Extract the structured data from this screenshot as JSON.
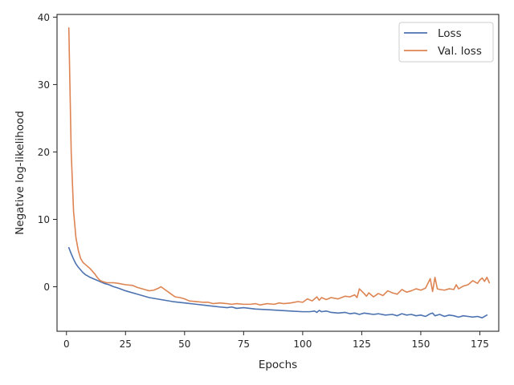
{
  "chart_data": {
    "type": "line",
    "title": "",
    "xlabel": "Epochs",
    "ylabel": "Negative log-likelihood",
    "xlim": [
      -4,
      183
    ],
    "ylim": [
      -6.6,
      40.4
    ],
    "xticks": [
      0,
      25,
      50,
      75,
      100,
      125,
      150,
      175
    ],
    "yticks": [
      0,
      10,
      20,
      30,
      40
    ],
    "grid": false,
    "legend": "top-right",
    "series": [
      {
        "name": "Loss",
        "color": "#4c72b0",
        "x": [
          1,
          2,
          3,
          4,
          5,
          6,
          7,
          8,
          9,
          10,
          12,
          14,
          16,
          18,
          20,
          22,
          25,
          30,
          35,
          40,
          45,
          50,
          55,
          60,
          65,
          68,
          70,
          72,
          75,
          80,
          85,
          90,
          95,
          100,
          103,
          105,
          106,
          107,
          108,
          110,
          112,
          115,
          118,
          120,
          122,
          124,
          126,
          128,
          130,
          132,
          135,
          138,
          140,
          142,
          144,
          146,
          148,
          150,
          152,
          154,
          155,
          156,
          158,
          160,
          162,
          164,
          166,
          168,
          170,
          172,
          174,
          176,
          178
        ],
        "y": [
          5.8,
          4.9,
          4.1,
          3.4,
          2.9,
          2.5,
          2.1,
          1.8,
          1.6,
          1.4,
          1.1,
          0.8,
          0.5,
          0.3,
          0.0,
          -0.2,
          -0.6,
          -1.1,
          -1.6,
          -1.9,
          -2.2,
          -2.4,
          -2.6,
          -2.8,
          -3.0,
          -3.1,
          -3.0,
          -3.2,
          -3.1,
          -3.3,
          -3.4,
          -3.5,
          -3.6,
          -3.7,
          -3.7,
          -3.6,
          -3.8,
          -3.5,
          -3.7,
          -3.6,
          -3.8,
          -3.9,
          -3.8,
          -4.0,
          -3.9,
          -4.1,
          -3.9,
          -4.0,
          -4.1,
          -4.0,
          -4.2,
          -4.1,
          -4.3,
          -4.0,
          -4.2,
          -4.1,
          -4.3,
          -4.2,
          -4.4,
          -4.0,
          -3.9,
          -4.3,
          -4.1,
          -4.4,
          -4.2,
          -4.3,
          -4.5,
          -4.3,
          -4.4,
          -4.5,
          -4.4,
          -4.6,
          -4.2
        ]
      },
      {
        "name": "Val. loss",
        "color": "#dd8452",
        "x": [
          1,
          2,
          3,
          4,
          5,
          6,
          7,
          8,
          9,
          10,
          11,
          12,
          13,
          14,
          15,
          16,
          17,
          18,
          20,
          22,
          25,
          28,
          30,
          33,
          35,
          37,
          39,
          40,
          42,
          44,
          46,
          48,
          50,
          52,
          55,
          58,
          60,
          62,
          65,
          68,
          70,
          72,
          75,
          78,
          80,
          82,
          85,
          88,
          90,
          92,
          95,
          98,
          100,
          102,
          104,
          106,
          107,
          108,
          110,
          112,
          115,
          118,
          120,
          122,
          123,
          124,
          126,
          127,
          128,
          130,
          132,
          134,
          136,
          138,
          140,
          142,
          144,
          146,
          148,
          150,
          152,
          154,
          155,
          156,
          157,
          158,
          160,
          162,
          164,
          165,
          166,
          168,
          170,
          172,
          174,
          175,
          176,
          177,
          178,
          179
        ],
        "y": [
          38.4,
          20.0,
          11.2,
          7.3,
          5.4,
          4.2,
          3.6,
          3.3,
          3.0,
          2.7,
          2.3,
          1.9,
          1.4,
          1.0,
          0.8,
          0.7,
          0.6,
          0.6,
          0.6,
          0.5,
          0.3,
          0.2,
          -0.1,
          -0.4,
          -0.6,
          -0.5,
          -0.2,
          0.0,
          -0.5,
          -1.0,
          -1.5,
          -1.6,
          -1.8,
          -2.1,
          -2.2,
          -2.3,
          -2.3,
          -2.5,
          -2.4,
          -2.5,
          -2.6,
          -2.5,
          -2.6,
          -2.6,
          -2.5,
          -2.7,
          -2.5,
          -2.6,
          -2.4,
          -2.5,
          -2.4,
          -2.2,
          -2.3,
          -1.8,
          -2.1,
          -1.5,
          -2.0,
          -1.6,
          -1.9,
          -1.6,
          -1.8,
          -1.4,
          -1.5,
          -1.2,
          -1.6,
          -0.3,
          -1.0,
          -1.4,
          -0.9,
          -1.5,
          -1.0,
          -1.3,
          -0.6,
          -0.9,
          -1.1,
          -0.4,
          -0.8,
          -0.6,
          -0.3,
          -0.5,
          -0.2,
          1.2,
          -0.7,
          1.4,
          -0.3,
          -0.4,
          -0.5,
          -0.3,
          -0.4,
          0.3,
          -0.3,
          0.1,
          0.3,
          0.9,
          0.5,
          1.0,
          1.3,
          0.8,
          1.4,
          0.6
        ]
      }
    ]
  }
}
